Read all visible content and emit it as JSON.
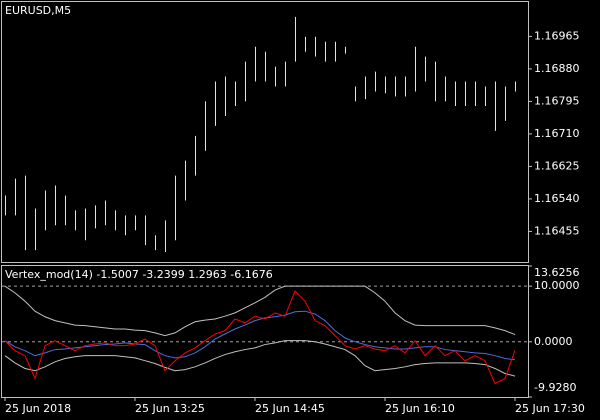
{
  "chart_data": [
    {
      "type": "ohlc",
      "title": "EURUSD,M5",
      "color": "#ffff00",
      "grid": false,
      "ylim": [
        1.16375,
        1.17055
      ],
      "yticks": [
        1.16965,
        {
          "value": 1.1688,
          "label": "1.16880"
        },
        1.16795,
        {
          "value": 1.1671,
          "label": "1.16710"
        },
        1.16625,
        {
          "value": 1.1654,
          "label": "1.16540"
        },
        1.16455
      ],
      "high": [
        1.16549,
        1.16593,
        1.16601,
        1.16515,
        1.16562,
        1.16575,
        1.16549,
        1.1651,
        1.16515,
        1.16523,
        1.16536,
        1.1651,
        1.16497,
        1.16497,
        1.16497,
        1.16445,
        1.16484,
        1.16601,
        1.1664,
        1.16705,
        1.16795,
        1.16847,
        1.1686,
        1.16847,
        1.16899,
        1.16938,
        1.16925,
        1.16886,
        1.16899,
        1.17016,
        1.16964,
        1.16964,
        1.16951,
        1.16951,
        1.16938,
        1.16834,
        1.1686,
        1.16873,
        1.1686,
        1.1686,
        1.1686,
        1.16938,
        1.16912,
        1.16899,
        1.1686,
        1.16847,
        1.16847,
        1.16847,
        1.16834,
        1.16847,
        1.16834,
        1.16847
      ],
      "low": [
        1.16497,
        1.16497,
        1.16406,
        1.16406,
        1.16458,
        1.16471,
        1.16471,
        1.16458,
        1.16432,
        1.16463,
        1.16471,
        1.16458,
        1.16445,
        1.16458,
        1.16419,
        1.16406,
        1.16401,
        1.16432,
        1.16536,
        1.16601,
        1.16666,
        1.16731,
        1.16757,
        1.16783,
        1.16795,
        1.16847,
        1.16847,
        1.16834,
        1.16834,
        1.16899,
        1.16925,
        1.16912,
        1.16899,
        1.16899,
        1.1692,
        1.16795,
        1.16801,
        1.16821,
        1.16816,
        1.16808,
        1.16808,
        1.16821,
        1.16847,
        1.16795,
        1.16795,
        1.16783,
        1.16783,
        1.16783,
        1.16783,
        1.16718,
        1.16744,
        1.16821
      ]
    },
    {
      "type": "line",
      "title": "Vertex_mod(14) -1.5007 -3.2399 1.2963 -6.1676",
      "grid": "dashed",
      "ylim": [
        -9.928,
        13.6256
      ],
      "yticks": [
        13.6256,
        {
          "value": 10,
          "label": "10.0000"
        },
        {
          "value": 0,
          "label": "0.0000"
        },
        {
          "value": -9.928,
          "label": "-9.9280"
        }
      ],
      "categories": [
        "25 Jun 2018",
        null,
        null,
        null,
        null,
        null,
        null,
        null,
        null,
        null,
        null,
        null,
        null,
        "25 Jun 13:25",
        null,
        null,
        null,
        null,
        null,
        null,
        null,
        null,
        null,
        null,
        null,
        "25 Jun 14:45",
        null,
        null,
        null,
        null,
        null,
        null,
        null,
        null,
        null,
        null,
        null,
        null,
        "25 Jun 16:10",
        null,
        null,
        null,
        null,
        null,
        null,
        null,
        null,
        null,
        null,
        null,
        null,
        "25 Jun 17:30"
      ],
      "series": [
        {
          "color": "#c0c0c0",
          "values": [
            10.0,
            8.8,
            7.3,
            5.5,
            4.5,
            3.8,
            3.4,
            3.0,
            2.9,
            2.7,
            2.5,
            2.3,
            2.3,
            2.1,
            2.0,
            1.6,
            1.1,
            1.6,
            2.7,
            3.6,
            3.9,
            4.1,
            4.6,
            5.2,
            6.1,
            7.0,
            8.0,
            9.3,
            10.0,
            10.0,
            10.0,
            10.0,
            10.0,
            10.0,
            10.0,
            10.0,
            10.0,
            8.8,
            7.3,
            5.2,
            3.8,
            3.0,
            2.9,
            2.9,
            2.9,
            2.9,
            2.9,
            2.9,
            2.9,
            2.5,
            2.0,
            1.2963
          ]
        },
        {
          "color": "#c0c0c0",
          "values": [
            -2.5,
            -3.8,
            -4.8,
            -5.2,
            -4.5,
            -3.6,
            -3.0,
            -2.7,
            -2.5,
            -2.5,
            -2.5,
            -2.5,
            -2.7,
            -2.9,
            -3.4,
            -3.9,
            -4.6,
            -5.2,
            -5.0,
            -4.5,
            -3.8,
            -3.0,
            -2.3,
            -1.8,
            -1.4,
            -1.1,
            -0.5,
            -0.2,
            0.2,
            0.2,
            0.2,
            0,
            -0.4,
            -0.9,
            -1.4,
            -2.5,
            -4.3,
            -5.2,
            -5.0,
            -4.8,
            -4.5,
            -4.1,
            -3.9,
            -3.8,
            -3.8,
            -3.8,
            -3.8,
            -3.9,
            -4.1,
            -4.8,
            -5.7,
            -6.1676
          ]
        },
        {
          "color": "#4a6ee0",
          "values": [
            0.2,
            -0.9,
            -1.6,
            -2.5,
            -2.0,
            -1.4,
            -1.3,
            -1.1,
            -0.9,
            -0.7,
            -0.5,
            -0.4,
            -0.2,
            -0.4,
            -0.5,
            -1.6,
            -2.5,
            -2.9,
            -2.7,
            -2.0,
            -0.9,
            0.5,
            1.4,
            2.3,
            3.0,
            3.8,
            4.3,
            4.5,
            4.8,
            5.4,
            5.5,
            5.0,
            3.8,
            2.0,
            0.7,
            0,
            -0.5,
            -0.9,
            -1.1,
            -1.3,
            -1.3,
            -1.1,
            -0.9,
            -0.9,
            -1.4,
            -1.6,
            -1.8,
            -2.0,
            -2.1,
            -2.5,
            -3.0,
            -3.2399
          ]
        },
        {
          "color": "#ff0000",
          "values": [
            0.2,
            -1.6,
            -2.5,
            -6.6,
            -0.7,
            0.2,
            -0.7,
            -1.6,
            -0.7,
            -0.4,
            -0.2,
            -0.7,
            -0.7,
            -0.4,
            0.5,
            -0.7,
            -5.2,
            -3.4,
            -2.0,
            -1.1,
            0.2,
            1.4,
            2.0,
            4.1,
            3.4,
            4.6,
            4.1,
            5.2,
            4.6,
            9.1,
            7.3,
            3.8,
            2.9,
            1.1,
            -0.7,
            -1.3,
            -0.7,
            -1.3,
            -1.6,
            -0.7,
            -2.0,
            0.2,
            -2.5,
            -0.7,
            -2.5,
            -1.6,
            -3.4,
            -2.5,
            -3.4,
            -7.5,
            -6.6,
            -1.5007
          ]
        }
      ]
    }
  ]
}
